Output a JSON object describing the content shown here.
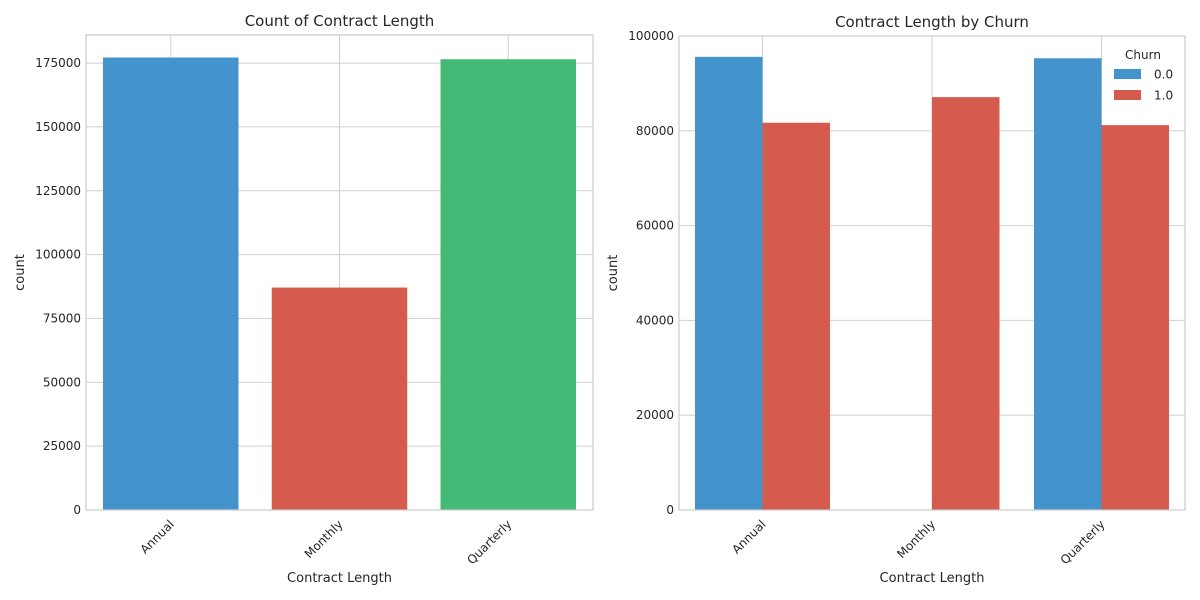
{
  "chart_data": [
    {
      "type": "bar",
      "title": "Count of Contract Length",
      "xlabel": "Contract Length",
      "ylabel": "count",
      "categories": [
        "Annual",
        "Monthly",
        "Quarterly"
      ],
      "values": [
        177200,
        87100,
        176500
      ],
      "colors": [
        "#4394cc",
        "#d45b4e",
        "#44ba77"
      ],
      "ylim": [
        0,
        186000
      ],
      "yticks": [
        0,
        25000,
        50000,
        75000,
        100000,
        125000,
        150000,
        175000
      ],
      "grid": true
    },
    {
      "type": "bar",
      "title": "Contract Length by Churn",
      "xlabel": "Contract Length",
      "ylabel": "count",
      "categories": [
        "Annual",
        "Monthly",
        "Quarterly"
      ],
      "series": [
        {
          "name": "0.0",
          "values": [
            95600,
            0,
            95300
          ],
          "color": "#4394cc"
        },
        {
          "name": "1.0",
          "values": [
            81700,
            87100,
            81200
          ],
          "color": "#d45b4e"
        }
      ],
      "ylim": [
        0,
        100000
      ],
      "yticks": [
        0,
        20000,
        40000,
        60000,
        80000,
        100000
      ],
      "legend": {
        "title": "Churn",
        "position": "top-right"
      },
      "grid": true
    }
  ]
}
